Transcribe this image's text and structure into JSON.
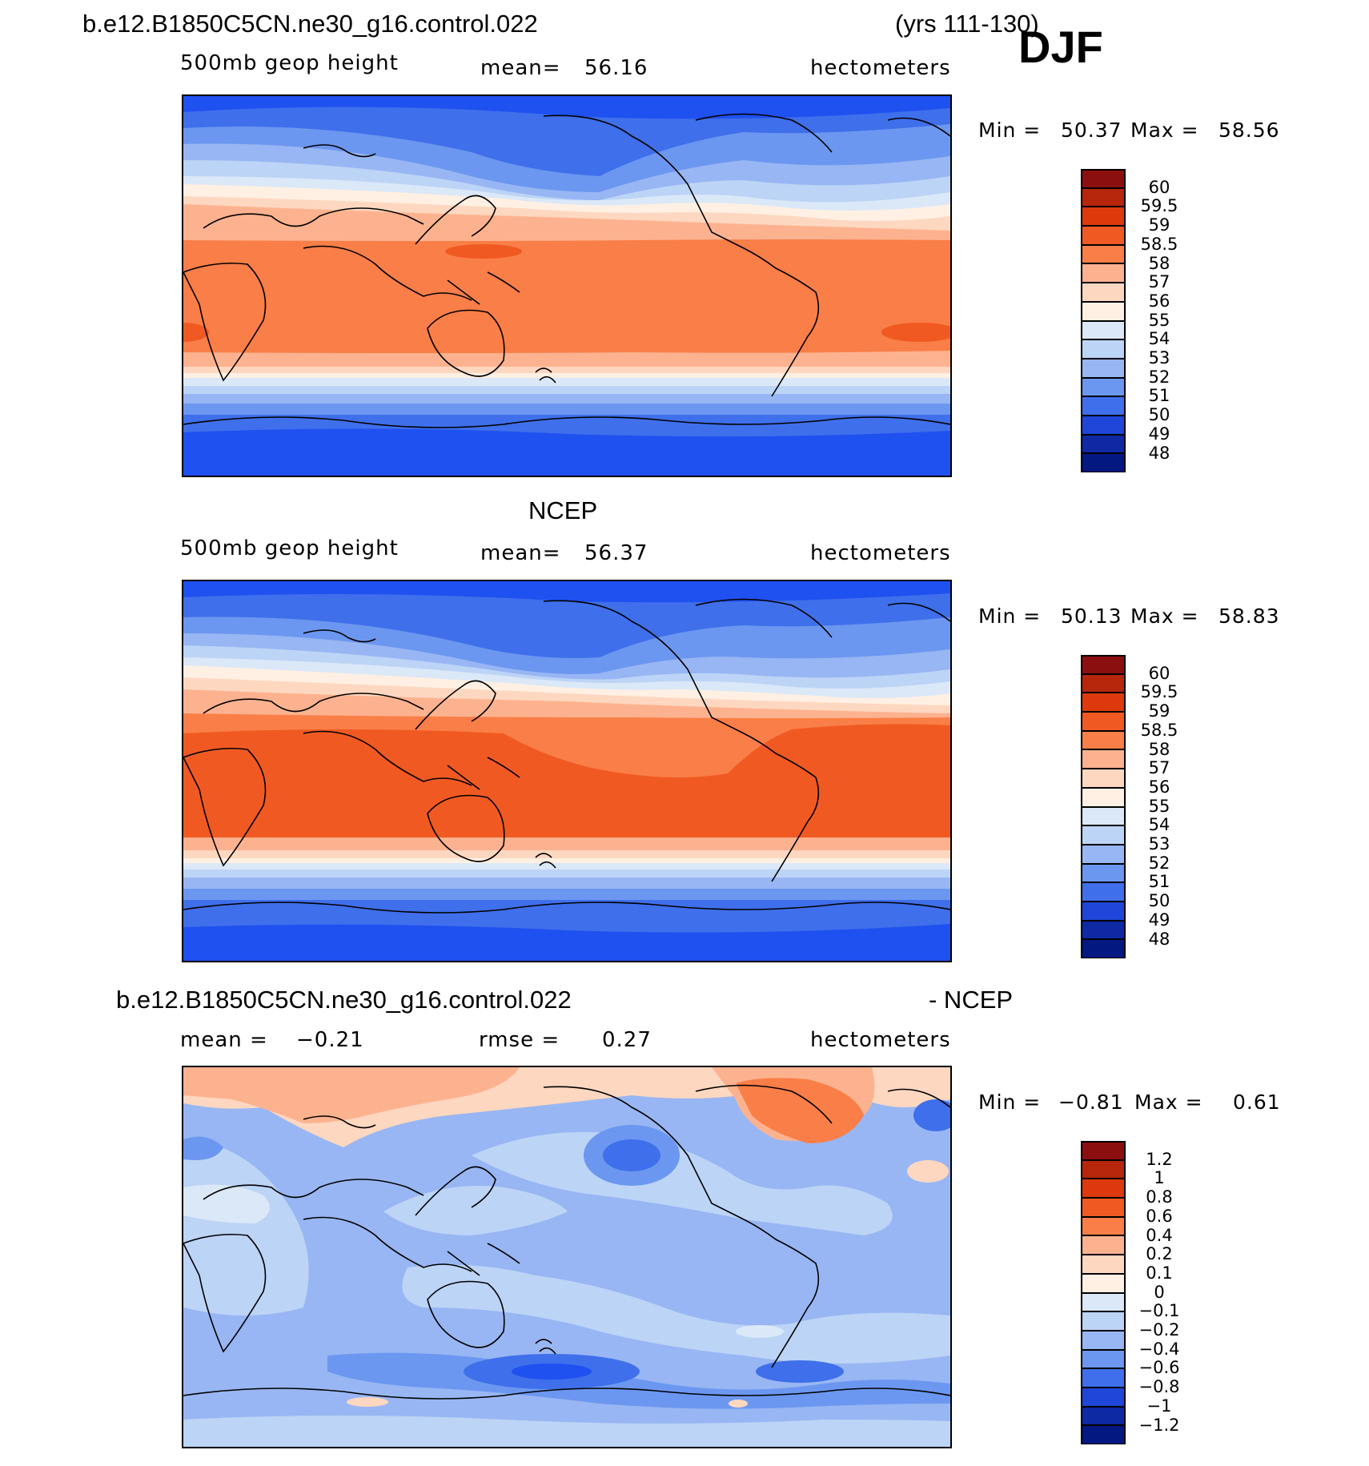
{
  "header": {
    "case_name": "b.e12.B1850C5CN.ne30_g16.control.022",
    "years": "(yrs 111-130)",
    "season": "DJF"
  },
  "panels": [
    {
      "title": "",
      "variable": "500mb geop height",
      "mean_label": "mean=",
      "mean_value": "56.16",
      "units": "hectometers",
      "min_label": "Min =",
      "min_value": "50.37",
      "max_label": "Max =",
      "max_value": "58.56",
      "colorbar_levels": [
        "60",
        "59.5",
        "59",
        "58.5",
        "58",
        "57",
        "56",
        "55",
        "54",
        "53",
        "52",
        "51",
        "50",
        "49",
        "48"
      ]
    },
    {
      "title": "NCEP",
      "variable": "500mb geop height",
      "mean_label": "mean=",
      "mean_value": "56.37",
      "units": "hectometers",
      "min_label": "Min =",
      "min_value": "50.13",
      "max_label": "Max =",
      "max_value": "58.83",
      "colorbar_levels": [
        "60",
        "59.5",
        "59",
        "58.5",
        "58",
        "57",
        "56",
        "55",
        "54",
        "53",
        "52",
        "51",
        "50",
        "49",
        "48"
      ]
    },
    {
      "title_left": "b.e12.B1850C5CN.ne30_g16.control.022",
      "title_right": "- NCEP",
      "mean_label": "mean =",
      "mean_value": "−0.21",
      "rmse_label": "rmse =",
      "rmse_value": "0.27",
      "units": "hectometers",
      "min_label": "Min =",
      "min_value": "−0.81",
      "max_label": "Max =",
      "max_value": "0.61",
      "colorbar_levels": [
        "1.2",
        "1",
        "0.8",
        "0.6",
        "0.4",
        "0.2",
        "0.1",
        "0",
        "−0.1",
        "−0.2",
        "−0.4",
        "−0.6",
        "−0.8",
        "−1",
        "−1.2"
      ]
    }
  ],
  "colors": {
    "colorbar_top_to_bottom": [
      "#8b0f0f",
      "#b5260b",
      "#dc3a0c",
      "#f05a22",
      "#fa7e47",
      "#fdb28f",
      "#fed7c0",
      "#fff0e3",
      "#dbe8f8",
      "#bcd4f6",
      "#98b6f3",
      "#6c97f0",
      "#3f6fea",
      "#1e46d8",
      "#0e29a3",
      "#031880"
    ]
  }
}
